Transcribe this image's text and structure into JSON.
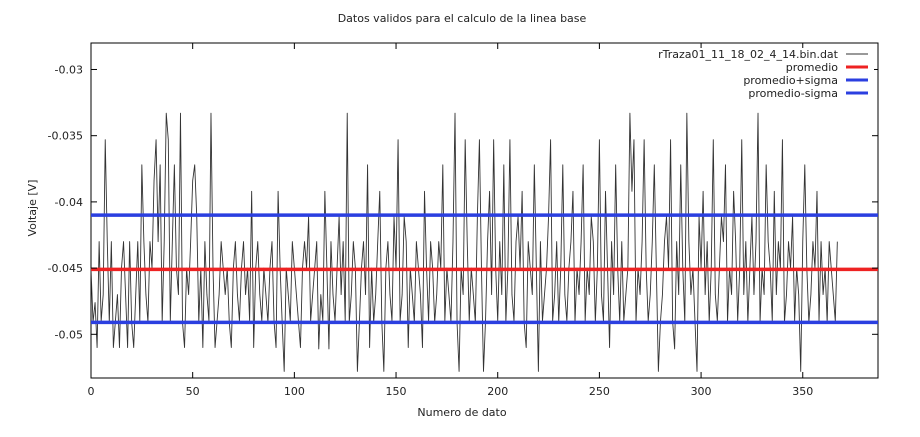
{
  "chart_data": {
    "type": "line",
    "title": "Datos validos para el calculo de la linea base",
    "xlabel": "Numero de dato",
    "ylabel": "Voltaje [V]",
    "xlim": [
      0,
      387
    ],
    "ylim": [
      -0.0533,
      -0.028
    ],
    "xticks": [
      0,
      50,
      100,
      150,
      200,
      250,
      300,
      350
    ],
    "yticks": [
      -0.05,
      -0.045,
      -0.04,
      -0.035,
      -0.03
    ],
    "ytick_labels": [
      "-0.05",
      "-0.045",
      "-0.04",
      "-0.035",
      "-0.03"
    ],
    "grid": false,
    "legend_position": "top-right",
    "series": [
      {
        "name": "rTraza01_11_18_02_4_14.bin.dat",
        "color": "#333333",
        "kind": "signal",
        "y_start": -0.045,
        "y_values": [
          -0.045,
          -0.0491,
          -0.0476,
          -0.051,
          -0.043,
          -0.049,
          -0.047,
          -0.0353,
          -0.043,
          -0.0491,
          -0.043,
          -0.051,
          -0.049,
          -0.047,
          -0.051,
          -0.045,
          -0.043,
          -0.047,
          -0.051,
          -0.043,
          -0.0491,
          -0.051,
          -0.047,
          -0.043,
          -0.049,
          -0.0372,
          -0.043,
          -0.047,
          -0.0491,
          -0.043,
          -0.045,
          -0.0384,
          -0.0353,
          -0.043,
          -0.0372,
          -0.0491,
          -0.043,
          -0.0333,
          -0.0353,
          -0.049,
          -0.043,
          -0.0372,
          -0.045,
          -0.047,
          -0.0333,
          -0.0491,
          -0.051,
          -0.045,
          -0.047,
          -0.043,
          -0.0384,
          -0.0372,
          -0.0411,
          -0.0491,
          -0.045,
          -0.051,
          -0.043,
          -0.047,
          -0.049,
          -0.0333,
          -0.045,
          -0.051,
          -0.049,
          -0.047,
          -0.043,
          -0.045,
          -0.047,
          -0.045,
          -0.0491,
          -0.051,
          -0.045,
          -0.043,
          -0.047,
          -0.049,
          -0.045,
          -0.043,
          -0.047,
          -0.045,
          -0.049,
          -0.0392,
          -0.051,
          -0.045,
          -0.043,
          -0.047,
          -0.049,
          -0.045,
          -0.047,
          -0.0491,
          -0.045,
          -0.043,
          -0.049,
          -0.051,
          -0.0392,
          -0.045,
          -0.0491,
          -0.0528,
          -0.045,
          -0.047,
          -0.049,
          -0.043,
          -0.045,
          -0.047,
          -0.049,
          -0.051,
          -0.045,
          -0.043,
          -0.045,
          -0.0411,
          -0.049,
          -0.047,
          -0.045,
          -0.043,
          -0.0511,
          -0.047,
          -0.049,
          -0.0392,
          -0.045,
          -0.0511,
          -0.043,
          -0.047,
          -0.049,
          -0.045,
          -0.0411,
          -0.047,
          -0.043,
          -0.049,
          -0.0333,
          -0.0491,
          -0.047,
          -0.043,
          -0.045,
          -0.0528,
          -0.049,
          -0.045,
          -0.043,
          -0.047,
          -0.0372,
          -0.051,
          -0.045,
          -0.0491,
          -0.047,
          -0.043,
          -0.0392,
          -0.049,
          -0.0528,
          -0.045,
          -0.043,
          -0.047,
          -0.049,
          -0.0411,
          -0.045,
          -0.0353,
          -0.049,
          -0.047,
          -0.0411,
          -0.043,
          -0.051,
          -0.045,
          -0.047,
          -0.0491,
          -0.043,
          -0.045,
          -0.047,
          -0.051,
          -0.0392,
          -0.045,
          -0.049,
          -0.043,
          -0.045,
          -0.0491,
          -0.047,
          -0.043,
          -0.045,
          -0.0372,
          -0.049,
          -0.045,
          -0.047,
          -0.0491,
          -0.043,
          -0.0333,
          -0.0491,
          -0.0528,
          -0.045,
          -0.047,
          -0.0353,
          -0.043,
          -0.049,
          -0.045,
          -0.047,
          -0.0491,
          -0.0411,
          -0.0353,
          -0.045,
          -0.0528,
          -0.049,
          -0.043,
          -0.0392,
          -0.047,
          -0.0353,
          -0.045,
          -0.049,
          -0.043,
          -0.047,
          -0.0372,
          -0.0491,
          -0.045,
          -0.0353,
          -0.047,
          -0.049,
          -0.043,
          -0.0411,
          -0.045,
          -0.0392,
          -0.0491,
          -0.051,
          -0.043,
          -0.045,
          -0.047,
          -0.0372,
          -0.045,
          -0.0528,
          -0.043,
          -0.049,
          -0.047,
          -0.045,
          -0.0411,
          -0.0353,
          -0.049,
          -0.047,
          -0.043,
          -0.0491,
          -0.045,
          -0.0372,
          -0.047,
          -0.049,
          -0.045,
          -0.043,
          -0.0392,
          -0.0491,
          -0.045,
          -0.047,
          -0.043,
          -0.0372,
          -0.049,
          -0.045,
          -0.047,
          -0.0411,
          -0.043,
          -0.0491,
          -0.045,
          -0.0353,
          -0.047,
          -0.049,
          -0.0392,
          -0.045,
          -0.051,
          -0.043,
          -0.047,
          -0.0372,
          -0.045,
          -0.0491,
          -0.043,
          -0.049,
          -0.047,
          -0.045,
          -0.0333,
          -0.0392,
          -0.0353,
          -0.0491,
          -0.045,
          -0.047,
          -0.043,
          -0.0353,
          -0.045,
          -0.049,
          -0.047,
          -0.043,
          -0.0372,
          -0.045,
          -0.0528,
          -0.0491,
          -0.047,
          -0.043,
          -0.0411,
          -0.045,
          -0.0353,
          -0.049,
          -0.0511,
          -0.043,
          -0.047,
          -0.0372,
          -0.045,
          -0.0491,
          -0.0333,
          -0.043,
          -0.047,
          -0.045,
          -0.049,
          -0.0528,
          -0.0411,
          -0.045,
          -0.0392,
          -0.047,
          -0.043,
          -0.0491,
          -0.045,
          -0.0353,
          -0.047,
          -0.049,
          -0.045,
          -0.0411,
          -0.043,
          -0.0372,
          -0.0491,
          -0.045,
          -0.047,
          -0.0392,
          -0.043,
          -0.049,
          -0.045,
          -0.0353,
          -0.047,
          -0.043,
          -0.0491,
          -0.045,
          -0.0411,
          -0.047,
          -0.043,
          -0.0333,
          -0.0491,
          -0.045,
          -0.047,
          -0.0372,
          -0.043,
          -0.045,
          -0.049,
          -0.0392,
          -0.047,
          -0.043,
          -0.045,
          -0.0353,
          -0.0491,
          -0.047,
          -0.043,
          -0.045,
          -0.0411,
          -0.049,
          -0.045,
          -0.047,
          -0.0528,
          -0.043,
          -0.0372,
          -0.045,
          -0.0491,
          -0.047,
          -0.043,
          -0.045,
          -0.0392,
          -0.049,
          -0.043,
          -0.047,
          -0.045,
          -0.0491,
          -0.043,
          -0.045,
          -0.047,
          -0.049,
          -0.043
        ]
      },
      {
        "name": "promedio",
        "color": "#ee2222",
        "kind": "hline",
        "y": -0.0451
      },
      {
        "name": "promedio+sigma",
        "color": "#2b3fe0",
        "kind": "hline",
        "y": -0.041
      },
      {
        "name": "promedio-sigma",
        "color": "#2b3fe0",
        "kind": "hline",
        "y": -0.0491
      }
    ]
  }
}
